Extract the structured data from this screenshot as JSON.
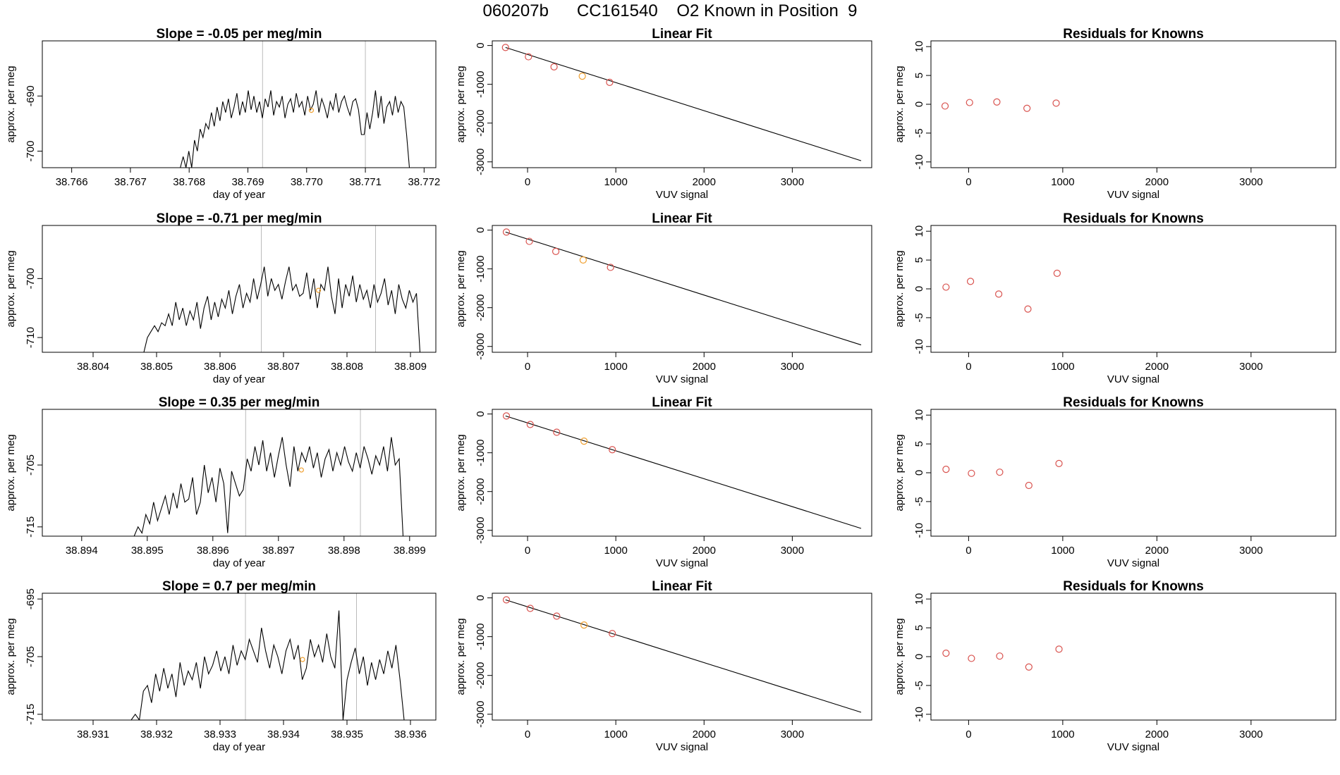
{
  "figure": {
    "title": "060207b      CC161540    O2 Known in Position  9"
  },
  "chart_data": [
    {
      "type": "line",
      "title": "Slope =  -0.05  per meg/min",
      "xlabel": "day of year",
      "ylabel": "approx. per meg",
      "xlim": [
        38.7655,
        38.7722
      ],
      "ylim": [
        -703,
        -680
      ],
      "xticks": [
        "38.766",
        "38.767",
        "38.768",
        "38.769",
        "38.770",
        "38.771",
        "38.772"
      ],
      "yticks": [
        "-700",
        "-690"
      ],
      "vlines": [
        38.76925,
        38.771
      ],
      "highlight": {
        "x": 38.77008,
        "y": -692.6
      },
      "series": [
        {
          "x_start": 38.76785,
          "x_end": 38.77175,
          "start": 38.76785,
          "end": 38.77175,
          "values": [
            -703.0,
            -701.0,
            -703.0,
            -700.0,
            -703.0,
            -698.0,
            -700.0,
            -696.0,
            -697.5,
            -695.0,
            -696.0,
            -693.0,
            -695.5,
            -692.0,
            -694.5,
            -691.0,
            -693.0,
            -690.5,
            -694.0,
            -692.0,
            -689.5,
            -693.5,
            -691.0,
            -693.0,
            -689.0,
            -692.5,
            -690.0,
            -693.0,
            -691.0,
            -694.0,
            -690.5,
            -692.0,
            -689.0,
            -693.5,
            -691.0,
            -692.0,
            -690.0,
            -694.0,
            -691.5,
            -690.5,
            -693.0,
            -689.5,
            -692.0,
            -691.0,
            -693.5,
            -690.0,
            -692.5,
            -691.5,
            -689.0,
            -693.0,
            -690.5,
            -692.0,
            -694.0,
            -691.0,
            -692.5,
            -689.5,
            -693.0,
            -691.0,
            -690.0,
            -692.0,
            -693.5,
            -691.0,
            -690.5,
            -692.5,
            -697.0,
            -697.0,
            -693.0,
            -696.0,
            -693.0,
            -689.0,
            -694.0,
            -690.0,
            -695.0,
            -692.0,
            -691.0,
            -693.5,
            -690.0,
            -693.0,
            -691.0,
            -692.0,
            -697.0,
            -703.0
          ]
        }
      ]
    },
    {
      "type": "scatter",
      "title": "Linear Fit",
      "xlabel": "VUV signal",
      "ylabel": "approx. per meg",
      "xlim": [
        -400,
        3900
      ],
      "ylim": [
        -3150,
        120
      ],
      "xticks": [
        "0",
        "1000",
        "2000",
        "3000"
      ],
      "yticks": [
        "0",
        "-1000",
        "-2000",
        "-3000"
      ],
      "points": [
        {
          "x": -250,
          "y": -50
        },
        {
          "x": 10,
          "y": -290
        },
        {
          "x": 300,
          "y": -550
        },
        {
          "x": 620,
          "y": -790
        },
        {
          "x": 930,
          "y": -950
        }
      ],
      "highlight_index": 3,
      "fit_line": {
        "x": [
          -250,
          3780
        ],
        "y": [
          -50,
          -2970
        ]
      }
    },
    {
      "type": "scatter",
      "title": "Residuals for Knowns",
      "xlabel": "VUV signal",
      "ylabel": "approx. per meg",
      "xlim": [
        -400,
        3900
      ],
      "ylim": [
        -11,
        11
      ],
      "xticks": [
        "0",
        "1000",
        "2000",
        "3000"
      ],
      "yticks": [
        "-10",
        "-5",
        "0",
        "5",
        "10"
      ],
      "points": [
        {
          "x": -250,
          "y": -0.3
        },
        {
          "x": 10,
          "y": 0.3
        },
        {
          "x": 300,
          "y": 0.4
        },
        {
          "x": 620,
          "y": -0.7
        },
        {
          "x": 930,
          "y": 0.2
        }
      ]
    },
    {
      "type": "line",
      "title": "Slope =  -0.71  per meg/min",
      "xlabel": "day of year",
      "ylabel": "approx. per meg",
      "xlim": [
        38.8032,
        38.8094
      ],
      "ylim": [
        -712.5,
        -691
      ],
      "xticks": [
        "38.804",
        "38.805",
        "38.806",
        "38.807",
        "38.808",
        "38.809"
      ],
      "yticks": [
        "-710",
        "-700"
      ],
      "vlines": [
        38.80665,
        38.80845
      ],
      "highlight": {
        "x": 38.80755,
        "y": -702.0
      },
      "series": [
        {
          "x_start": 38.8048,
          "x_end": 38.80915,
          "values": [
            -712.5,
            -710.0,
            -709.0,
            -708.0,
            -709.0,
            -707.5,
            -708.0,
            -706.0,
            -708.0,
            -704.0,
            -707.0,
            -705.0,
            -708.0,
            -705.5,
            -707.0,
            -704.0,
            -708.5,
            -705.0,
            -703.0,
            -707.0,
            -704.0,
            -706.5,
            -703.5,
            -705.0,
            -702.0,
            -706.0,
            -703.0,
            -701.0,
            -705.0,
            -702.5,
            -704.0,
            -700.0,
            -703.5,
            -701.0,
            -698.0,
            -703.0,
            -700.0,
            -702.0,
            -701.0,
            -703.5,
            -700.5,
            -698.0,
            -702.0,
            -701.0,
            -703.0,
            -702.5,
            -699.0,
            -703.5,
            -700.0,
            -705.0,
            -701.0,
            -702.0,
            -698.0,
            -703.0,
            -706.0,
            -700.0,
            -705.0,
            -701.0,
            -703.0,
            -699.5,
            -704.0,
            -701.0,
            -703.5,
            -702.0,
            -705.0,
            -701.0,
            -704.0,
            -702.5,
            -700.0,
            -704.5,
            -702.0,
            -706.0,
            -701.0,
            -703.5,
            -705.0,
            -702.0,
            -704.0,
            -702.5,
            -712.5
          ]
        }
      ]
    },
    {
      "type": "scatter",
      "title": "Linear Fit",
      "xlabel": "VUV signal",
      "ylabel": "approx. per meg",
      "xlim": [
        -400,
        3900
      ],
      "ylim": [
        -3150,
        120
      ],
      "xticks": [
        "0",
        "1000",
        "2000",
        "3000"
      ],
      "yticks": [
        "0",
        "-1000",
        "-2000",
        "-3000"
      ],
      "points": [
        {
          "x": -240,
          "y": -50
        },
        {
          "x": 20,
          "y": -290
        },
        {
          "x": 320,
          "y": -550
        },
        {
          "x": 630,
          "y": -770
        },
        {
          "x": 940,
          "y": -960
        }
      ],
      "highlight_index": 3,
      "fit_line": {
        "x": [
          -250,
          3780
        ],
        "y": [
          -50,
          -2960
        ]
      }
    },
    {
      "type": "scatter",
      "title": "Residuals for Knowns",
      "xlabel": "VUV signal",
      "ylabel": "approx. per meg",
      "xlim": [
        -400,
        3900
      ],
      "ylim": [
        -11,
        11
      ],
      "xticks": [
        "0",
        "1000",
        "2000",
        "3000"
      ],
      "yticks": [
        "-10",
        "-5",
        "0",
        "5",
        "10"
      ],
      "points": [
        {
          "x": -240,
          "y": 0.3
        },
        {
          "x": 20,
          "y": 1.3
        },
        {
          "x": 320,
          "y": -0.9
        },
        {
          "x": 630,
          "y": -3.5
        },
        {
          "x": 940,
          "y": 2.7
        }
      ]
    },
    {
      "type": "line",
      "title": "Slope =  0.35  per meg/min",
      "xlabel": "day of year",
      "ylabel": "approx. per meg",
      "xlim": [
        38.8934,
        38.8994
      ],
      "ylim": [
        -716.5,
        -696
      ],
      "xticks": [
        "38.894",
        "38.895",
        "38.896",
        "38.897",
        "38.898",
        "38.899"
      ],
      "yticks": [
        "-715",
        "-705"
      ],
      "vlines": [
        38.8965,
        38.89825
      ],
      "highlight": {
        "x": 38.89735,
        "y": -705.8
      },
      "series": [
        {
          "x_start": 38.8948,
          "x_end": 38.8989,
          "values": [
            -716.5,
            -715.0,
            -716.0,
            -713.0,
            -714.5,
            -711.0,
            -714.0,
            -712.0,
            -710.0,
            -713.0,
            -709.5,
            -712.0,
            -708.0,
            -711.0,
            -710.5,
            -707.0,
            -713.0,
            -711.0,
            -705.0,
            -709.5,
            -707.0,
            -711.0,
            -705.5,
            -708.0,
            -716.0,
            -706.0,
            -708.0,
            -710.0,
            -709.0,
            -704.0,
            -706.0,
            -702.0,
            -705.0,
            -701.0,
            -706.0,
            -703.0,
            -707.0,
            -703.5,
            -700.5,
            -705.0,
            -708.5,
            -702.0,
            -706.0,
            -703.0,
            -704.5,
            -702.0,
            -705.5,
            -703.0,
            -707.0,
            -704.0,
            -702.5,
            -706.0,
            -703.0,
            -705.0,
            -702.0,
            -704.5,
            -706.0,
            -703.0,
            -705.5,
            -702.0,
            -704.0,
            -706.5,
            -703.5,
            -705.0,
            -702.0,
            -706.0,
            -700.5,
            -705.0,
            -704.0,
            -716.5
          ]
        }
      ]
    },
    {
      "type": "scatter",
      "title": "Linear Fit",
      "xlabel": "VUV signal",
      "ylabel": "approx. per meg",
      "xlim": [
        -400,
        3900
      ],
      "ylim": [
        -3150,
        120
      ],
      "xticks": [
        "0",
        "1000",
        "2000",
        "3000"
      ],
      "yticks": [
        "0",
        "-1000",
        "-2000",
        "-3000"
      ],
      "points": [
        {
          "x": -240,
          "y": -50
        },
        {
          "x": 30,
          "y": -270
        },
        {
          "x": 330,
          "y": -470
        },
        {
          "x": 640,
          "y": -700
        },
        {
          "x": 960,
          "y": -920
        }
      ],
      "highlight_index": 3,
      "fit_line": {
        "x": [
          -250,
          3780
        ],
        "y": [
          -50,
          -2950
        ]
      }
    },
    {
      "type": "scatter",
      "title": "Residuals for Knowns",
      "xlabel": "VUV signal",
      "ylabel": "approx. per meg",
      "xlim": [
        -400,
        3900
      ],
      "ylim": [
        -11,
        11
      ],
      "xticks": [
        "0",
        "1000",
        "2000",
        "3000"
      ],
      "yticks": [
        "-10",
        "-5",
        "0",
        "5",
        "10"
      ],
      "points": [
        {
          "x": -240,
          "y": 0.6
        },
        {
          "x": 30,
          "y": -0.1
        },
        {
          "x": 330,
          "y": 0.1
        },
        {
          "x": 640,
          "y": -2.2
        },
        {
          "x": 960,
          "y": 1.6
        }
      ]
    },
    {
      "type": "line",
      "title": "Slope =  0.7  per meg/min",
      "xlabel": "day of year",
      "ylabel": "approx. per meg",
      "xlim": [
        38.9302,
        38.9364
      ],
      "ylim": [
        -716,
        -694
      ],
      "xticks": [
        "38.931",
        "38.932",
        "38.933",
        "38.934",
        "38.935",
        "38.936"
      ],
      "yticks": [
        "-715",
        "-705",
        "-695"
      ],
      "vlines": [
        38.9334,
        38.93515
      ],
      "highlight": {
        "x": 38.9343,
        "y": -705.5
      },
      "series": [
        {
          "x_start": 38.9316,
          "x_end": 38.9359,
          "values": [
            -716.0,
            -715.0,
            -716.0,
            -711.0,
            -710.0,
            -713.0,
            -708.0,
            -711.0,
            -707.0,
            -710.5,
            -708.0,
            -712.0,
            -706.0,
            -710.0,
            -707.5,
            -709.0,
            -706.0,
            -710.5,
            -705.0,
            -708.0,
            -706.5,
            -704.0,
            -707.5,
            -705.0,
            -708.0,
            -703.0,
            -706.5,
            -704.0,
            -705.5,
            -702.0,
            -704.0,
            -706.0,
            -700.0,
            -704.0,
            -707.0,
            -703.0,
            -705.0,
            -708.0,
            -704.0,
            -702.0,
            -705.5,
            -703.0,
            -709.0,
            -707.0,
            -702.0,
            -705.0,
            -703.0,
            -706.0,
            -701.0,
            -705.0,
            -707.0,
            -697.0,
            -716.0,
            -709.0,
            -706.0,
            -703.5,
            -708.0,
            -705.0,
            -710.0,
            -706.0,
            -709.0,
            -705.5,
            -708.0,
            -704.0,
            -707.0,
            -703.0,
            -709.0,
            -716.0
          ]
        }
      ]
    },
    {
      "type": "scatter",
      "title": "Linear Fit",
      "xlabel": "VUV signal",
      "ylabel": "approx. per meg",
      "xlim": [
        -400,
        3900
      ],
      "ylim": [
        -3150,
        120
      ],
      "xticks": [
        "0",
        "1000",
        "2000",
        "3000"
      ],
      "yticks": [
        "0",
        "-1000",
        "-2000",
        "-3000"
      ],
      "points": [
        {
          "x": -240,
          "y": -50
        },
        {
          "x": 30,
          "y": -270
        },
        {
          "x": 330,
          "y": -470
        },
        {
          "x": 640,
          "y": -700
        },
        {
          "x": 960,
          "y": -920
        }
      ],
      "highlight_index": 3,
      "fit_line": {
        "x": [
          -250,
          3780
        ],
        "y": [
          -50,
          -2950
        ]
      }
    },
    {
      "type": "scatter",
      "title": "Residuals for Knowns",
      "xlabel": "VUV signal",
      "ylabel": "approx. per meg",
      "xlim": [
        -400,
        3900
      ],
      "ylim": [
        -11,
        11
      ],
      "xticks": [
        "0",
        "1000",
        "2000",
        "3000"
      ],
      "yticks": [
        "-10",
        "-5",
        "0",
        "5",
        "10"
      ],
      "points": [
        {
          "x": -240,
          "y": 0.6
        },
        {
          "x": 30,
          "y": -0.3
        },
        {
          "x": 330,
          "y": 0.1
        },
        {
          "x": 640,
          "y": -1.8
        },
        {
          "x": 960,
          "y": 1.3
        }
      ]
    }
  ],
  "colors": {
    "axis": "#000000",
    "line": "#000000",
    "point": "#d9534f",
    "highlight": "#f0a030",
    "vline": "#bbbbbb"
  }
}
